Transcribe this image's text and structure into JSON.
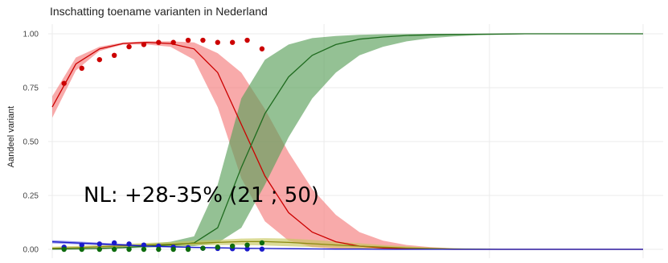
{
  "chart_data": {
    "type": "line",
    "title": "Inschatting toename varianten in Nederland",
    "xlabel": "",
    "ylabel": "Aandeel variant",
    "ylim": [
      0,
      1
    ],
    "xlim": [
      0,
      100
    ],
    "yticks": [
      "0.00",
      "0.25",
      "0.50",
      "0.75",
      "1.00"
    ],
    "ytick_values": [
      0,
      0.25,
      0.5,
      0.75,
      1
    ],
    "grid": true,
    "annotation": "NL: +28-35% (21 ; 50)",
    "colors": {
      "red": "#cc0000",
      "red_band": "#f47c7c",
      "green": "#1f6b1f",
      "green_band": "#5aa05a",
      "olive": "#8a8a10",
      "olive_band": "#c8c860",
      "blue": "#1a1acc",
      "blue_band": "#5d5de0",
      "dark_green_points": "#0d6b0d"
    },
    "series": [
      {
        "color_key": "red",
        "x": [
          0,
          4,
          8,
          12,
          16,
          20,
          24,
          28,
          32,
          36,
          40,
          44,
          48,
          52,
          56,
          60,
          64,
          68,
          72,
          76,
          80,
          84,
          88,
          92,
          96,
          100
        ],
        "y": [
          0.66,
          0.86,
          0.93,
          0.955,
          0.96,
          0.955,
          0.93,
          0.82,
          0.58,
          0.34,
          0.17,
          0.08,
          0.035,
          0.015,
          0.006,
          0.003,
          0.001,
          0,
          0,
          0,
          0,
          0,
          0,
          0,
          0,
          0
        ],
        "lower": [
          0.61,
          0.83,
          0.92,
          0.95,
          0.95,
          0.94,
          0.88,
          0.66,
          0.33,
          0.13,
          0.04,
          0.01,
          0.003,
          0.001,
          0,
          0,
          0,
          0,
          0,
          0,
          0,
          0,
          0,
          0,
          0,
          0
        ],
        "upper": [
          0.71,
          0.89,
          0.94,
          0.96,
          0.965,
          0.965,
          0.96,
          0.91,
          0.82,
          0.65,
          0.45,
          0.28,
          0.16,
          0.08,
          0.04,
          0.02,
          0.01,
          0.005,
          0.002,
          0,
          0,
          0,
          0,
          0,
          0,
          0
        ]
      },
      {
        "color_key": "green",
        "x": [
          0,
          4,
          8,
          12,
          16,
          20,
          24,
          28,
          32,
          36,
          40,
          44,
          48,
          52,
          56,
          60,
          64,
          68,
          72,
          76,
          80,
          84,
          88,
          92,
          96,
          100
        ],
        "y": [
          0.001,
          0.002,
          0.004,
          0.008,
          0.015,
          0.02,
          0.03,
          0.1,
          0.38,
          0.63,
          0.8,
          0.9,
          0.95,
          0.975,
          0.985,
          0.992,
          0.995,
          0.997,
          0.998,
          0.999,
          1,
          1,
          1,
          1,
          1,
          1
        ],
        "lower": [
          0,
          0.001,
          0.002,
          0.004,
          0.008,
          0.012,
          0.015,
          0.03,
          0.1,
          0.3,
          0.52,
          0.7,
          0.82,
          0.9,
          0.94,
          0.965,
          0.98,
          0.988,
          0.993,
          0.996,
          0.998,
          0.999,
          1,
          1,
          1,
          1
        ],
        "upper": [
          0.003,
          0.004,
          0.006,
          0.012,
          0.025,
          0.035,
          0.06,
          0.3,
          0.7,
          0.88,
          0.95,
          0.98,
          0.99,
          0.995,
          0.998,
          0.999,
          1,
          1,
          1,
          1,
          1,
          1,
          1,
          1,
          1,
          1
        ]
      },
      {
        "color_key": "olive",
        "x": [
          0,
          4,
          8,
          12,
          16,
          20,
          24,
          28,
          32,
          36,
          40,
          44,
          48,
          52,
          56,
          60,
          64,
          68,
          72,
          76,
          80,
          84,
          88,
          92,
          96,
          100
        ],
        "y": [
          0.005,
          0.008,
          0.012,
          0.016,
          0.02,
          0.024,
          0.028,
          0.032,
          0.036,
          0.036,
          0.032,
          0.026,
          0.02,
          0.015,
          0.01,
          0.006,
          0.004,
          0.002,
          0.001,
          0,
          0,
          0,
          0,
          0,
          0,
          0
        ],
        "lower": [
          0,
          0,
          0.004,
          0.008,
          0.012,
          0.015,
          0.018,
          0.02,
          0.02,
          0.018,
          0.014,
          0.01,
          0.007,
          0.004,
          0.002,
          0.001,
          0,
          0,
          0,
          0,
          0,
          0,
          0,
          0,
          0,
          0
        ],
        "upper": [
          0.012,
          0.016,
          0.02,
          0.025,
          0.03,
          0.034,
          0.04,
          0.044,
          0.05,
          0.052,
          0.05,
          0.044,
          0.036,
          0.028,
          0.02,
          0.014,
          0.008,
          0.005,
          0.003,
          0.001,
          0,
          0,
          0,
          0,
          0,
          0
        ]
      },
      {
        "color_key": "blue",
        "x": [
          0,
          4,
          8,
          12,
          16,
          20,
          24,
          28,
          32,
          36,
          40,
          44,
          48,
          52,
          56,
          60,
          64,
          68,
          72,
          76,
          80,
          84,
          88,
          92,
          96,
          100
        ],
        "y": [
          0.035,
          0.03,
          0.025,
          0.02,
          0.015,
          0.012,
          0.009,
          0.007,
          0.005,
          0.004,
          0.003,
          0.002,
          0.001,
          0.001,
          0,
          0,
          0,
          0,
          0,
          0,
          0,
          0,
          0,
          0,
          0,
          0
        ],
        "lower": [
          0.028,
          0.024,
          0.02,
          0.016,
          0.012,
          0.009,
          0.006,
          0.004,
          0.003,
          0.002,
          0.001,
          0.001,
          0,
          0,
          0,
          0,
          0,
          0,
          0,
          0,
          0,
          0,
          0,
          0,
          0,
          0
        ],
        "upper": [
          0.042,
          0.037,
          0.031,
          0.025,
          0.019,
          0.015,
          0.012,
          0.01,
          0.008,
          0.006,
          0.005,
          0.004,
          0.003,
          0.002,
          0.001,
          0.001,
          0,
          0,
          0,
          0,
          0,
          0,
          0,
          0,
          0,
          0
        ]
      }
    ],
    "points": [
      {
        "color_key": "red",
        "x": [
          2,
          5,
          8,
          10.5,
          13,
          15.5,
          18,
          20.5,
          23,
          25.5,
          28,
          30.5,
          33,
          35.5
        ],
        "y": [
          0.77,
          0.84,
          0.88,
          0.9,
          0.94,
          0.95,
          0.96,
          0.96,
          0.97,
          0.97,
          0.96,
          0.96,
          0.97,
          0.93
        ]
      },
      {
        "color_key": "blue",
        "x": [
          2,
          5,
          8,
          10.5,
          13,
          15.5,
          18,
          20.5,
          23,
          25.5,
          28,
          30.5,
          33,
          35.5
        ],
        "y": [
          0.01,
          0.02,
          0.025,
          0.03,
          0.025,
          0.02,
          0.015,
          0.01,
          0.008,
          0.005,
          0.004,
          0.003,
          0.002,
          0.001
        ]
      },
      {
        "color_key": "dark_green_points",
        "x": [
          2,
          5,
          8,
          10.5,
          13,
          15.5,
          18,
          20.5,
          23,
          25.5,
          28,
          30.5,
          33,
          35.5
        ],
        "y": [
          0,
          0,
          0,
          0,
          0,
          0,
          0,
          0,
          0,
          0.005,
          0.01,
          0.015,
          0.02,
          0.03
        ]
      }
    ]
  }
}
